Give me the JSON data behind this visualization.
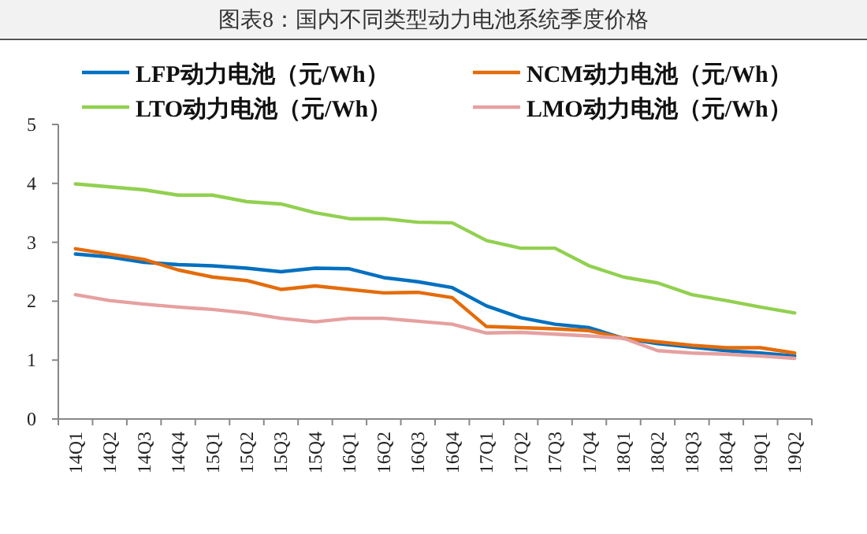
{
  "chart_data": {
    "type": "line",
    "title": "图表8：国内不同类型动力电池系统季度价格",
    "categories": [
      "14Q1",
      "14Q2",
      "14Q3",
      "14Q4",
      "15Q1",
      "15Q2",
      "15Q3",
      "15Q4",
      "16Q1",
      "16Q2",
      "16Q3",
      "16Q4",
      "17Q1",
      "17Q2",
      "17Q3",
      "17Q4",
      "18Q1",
      "18Q2",
      "18Q3",
      "18Q4",
      "19Q1",
      "19Q2"
    ],
    "series": [
      {
        "name": "LFP动力电池（元/Wh）",
        "color": "#0070c0",
        "values": [
          2.8,
          2.75,
          2.66,
          2.62,
          2.6,
          2.56,
          2.5,
          2.56,
          2.55,
          2.4,
          2.33,
          2.23,
          1.92,
          1.72,
          1.61,
          1.55,
          1.37,
          1.28,
          1.22,
          1.16,
          1.12,
          1.07
        ]
      },
      {
        "name": "NCM动力电池（元/Wh）",
        "color": "#e46c0a",
        "values": [
          2.89,
          2.8,
          2.71,
          2.53,
          2.41,
          2.35,
          2.2,
          2.26,
          2.2,
          2.14,
          2.15,
          2.06,
          1.57,
          1.55,
          1.53,
          1.5,
          1.37,
          1.31,
          1.25,
          1.21,
          1.21,
          1.12
        ]
      },
      {
        "name": "LTO动力电池（元/Wh）",
        "color": "#92d050",
        "values": [
          3.99,
          3.94,
          3.89,
          3.8,
          3.8,
          3.69,
          3.65,
          3.5,
          3.4,
          3.4,
          3.34,
          3.33,
          3.03,
          2.9,
          2.9,
          2.6,
          2.41,
          2.31,
          2.11,
          2.01,
          1.9,
          1.8
        ]
      },
      {
        "name": "LMO动力电池（元/Wh）",
        "color": "#e6a0a0",
        "values": [
          2.11,
          2.01,
          1.95,
          1.9,
          1.86,
          1.8,
          1.71,
          1.65,
          1.71,
          1.71,
          1.66,
          1.61,
          1.46,
          1.47,
          1.44,
          1.41,
          1.37,
          1.16,
          1.12,
          1.1,
          1.07,
          1.03
        ]
      }
    ],
    "ylim": [
      0,
      5
    ],
    "yticks": [
      0,
      1,
      2,
      3,
      4,
      5
    ],
    "legend": "top",
    "line_style": "solid"
  }
}
